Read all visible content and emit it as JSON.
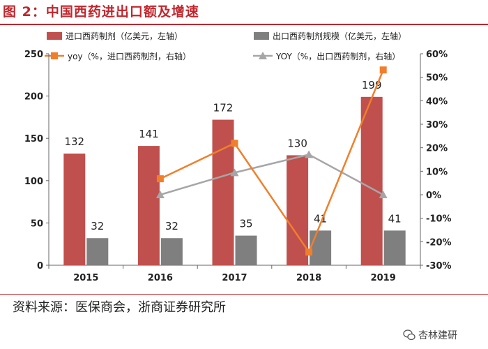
{
  "figure_title": "图 2：中国西药进出口额及增速",
  "source_text": "资料来源：医保商会，浙商证券研究所",
  "watermark_text": "杏林建研",
  "colors": {
    "import_bar": "#c0504d",
    "export_bar": "#7f7f7f",
    "import_line": "#f07f2c",
    "export_line": "#a6a6a6",
    "title": "#c0262d"
  },
  "chart_data": {
    "type": "bar",
    "title": "中国西药进出口额及增速",
    "categories": [
      "2015",
      "2016",
      "2017",
      "2018",
      "2019"
    ],
    "series": [
      {
        "name": "进口西药制剂（亿美元，左轴）",
        "kind": "bar",
        "axis": "left",
        "values": [
          132,
          141,
          172,
          130,
          199
        ]
      },
      {
        "name": "出口西药制剂规模（亿美元，左轴）",
        "kind": "bar",
        "axis": "left",
        "values": [
          32,
          32,
          35,
          41,
          41
        ]
      },
      {
        "name": "yoy（%，进口西药制剂，右轴）",
        "kind": "line",
        "axis": "right",
        "values": [
          null,
          6.8,
          21.9,
          -24.4,
          53.1
        ]
      },
      {
        "name": "YOY（%，出口西药制剂，右轴）",
        "kind": "line",
        "axis": "right",
        "values": [
          null,
          0,
          9.4,
          17.1,
          0
        ]
      }
    ],
    "left_axis": {
      "min": 0,
      "max": 250,
      "ticks": [
        "0",
        "50",
        "100",
        "150",
        "200",
        "250"
      ]
    },
    "right_axis": {
      "min": -30,
      "max": 60,
      "ticks": [
        "-30%",
        "-20%",
        "-10%",
        "0%",
        "10%",
        "20%",
        "30%",
        "40%",
        "50%",
        "60%"
      ]
    },
    "bar_labels": {
      "import": [
        "132",
        "141",
        "172",
        "130",
        "199"
      ],
      "export": [
        "32",
        "32",
        "35",
        "41",
        "41"
      ]
    }
  }
}
